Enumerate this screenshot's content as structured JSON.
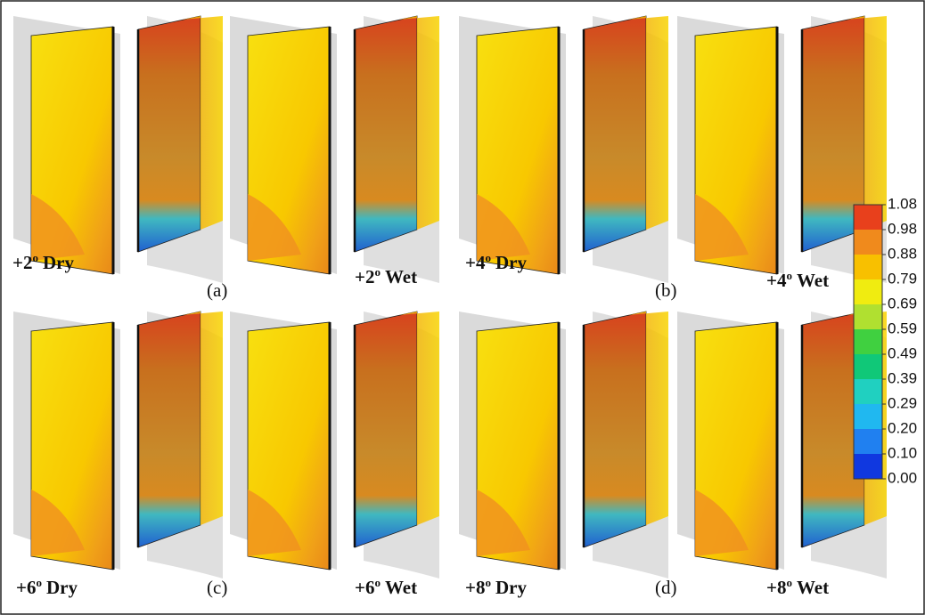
{
  "panels": [
    {
      "id": "(a)",
      "labels": [
        {
          "sign": "+2",
          "deg": "o",
          "cond": "Dry"
        },
        {
          "sign": "+2",
          "deg": "o",
          "cond": "Wet"
        }
      ]
    },
    {
      "id": "(b)",
      "labels": [
        {
          "sign": "+4",
          "deg": "o",
          "cond": "Dry"
        },
        {
          "sign": "+4",
          "deg": "o",
          "cond": "Wet"
        }
      ]
    },
    {
      "id": "(c)",
      "labels": [
        {
          "sign": "+6",
          "deg": "o",
          "cond": "Dry"
        },
        {
          "sign": "+6",
          "deg": "o",
          "cond": "Wet"
        }
      ]
    },
    {
      "id": "(d)",
      "labels": [
        {
          "sign": "+8",
          "deg": "o",
          "cond": "Dry"
        },
        {
          "sign": "+8",
          "deg": "o",
          "cond": "Wet"
        }
      ]
    }
  ],
  "colorbar": {
    "ticks": [
      "1.08",
      "0.98",
      "0.88",
      "0.79",
      "0.69",
      "0.59",
      "0.49",
      "0.39",
      "0.29",
      "0.20",
      "0.10",
      "0.00"
    ]
  }
}
